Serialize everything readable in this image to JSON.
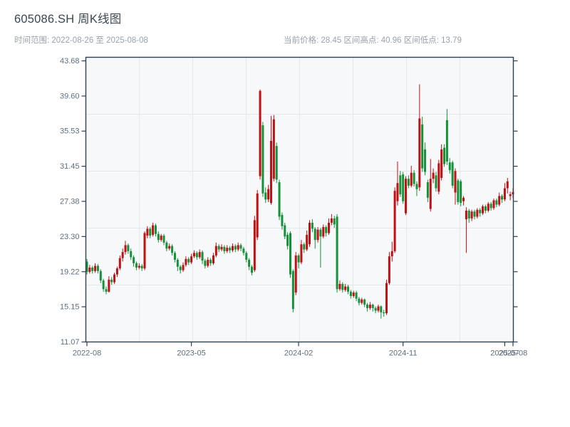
{
  "header": {
    "title": "605086.SH 周K线图",
    "date_range_label": "时间范围: 2022-08-26 至 2025-08-08",
    "stats_text": "当前价格: 28.45  区间高点: 40.96  区间低点: 13.79",
    "stats": [
      {
        "label": "当前价格",
        "value": "28.45"
      },
      {
        "label": "区间高点",
        "value": "40.96"
      },
      {
        "label": "区间低点",
        "value": "13.79"
      }
    ]
  },
  "chart_data": {
    "type": "candlestick",
    "title": "605086.SH 周K线图",
    "frequency": "weekly",
    "start_date": "2022-08-26",
    "end_date": "2025-08-08",
    "current_price": 28.45,
    "range_high": 40.96,
    "range_low": 13.79,
    "y_range": [
      11.07,
      43.68
    ],
    "y_tick_labels": [
      "43.68",
      "39.60",
      "35.53",
      "31.45",
      "27.38",
      "23.30",
      "19.22",
      "15.15",
      "11.07"
    ],
    "x_ticks": [
      {
        "week": 0,
        "label": "2022-08"
      },
      {
        "week": 38,
        "label": "2023-05"
      },
      {
        "week": 77,
        "label": "2024-02"
      },
      {
        "week": 115,
        "label": "2024-11"
      },
      {
        "week": 152,
        "label": "2025-07"
      },
      {
        "week": 155,
        "label": "2025-08"
      }
    ],
    "colors": {
      "up": "#c01014",
      "down": "#15913a",
      "grid": "#e4e8ec",
      "plot_bg": "#f6f8fa",
      "spine": "#2e3f50",
      "tick_label": "#5f6e7e"
    },
    "candles": [
      [
        20.4,
        20.7,
        18.9,
        19.2
      ],
      [
        19.2,
        20.0,
        19.0,
        19.7
      ],
      [
        19.7,
        19.9,
        19.0,
        19.3
      ],
      [
        19.3,
        20.2,
        19.1,
        19.9
      ],
      [
        19.9,
        20.1,
        19.0,
        19.3
      ],
      [
        19.3,
        19.5,
        17.9,
        18.2
      ],
      [
        18.2,
        18.4,
        16.9,
        17.2
      ],
      [
        17.2,
        17.5,
        16.6,
        16.9
      ],
      [
        16.9,
        18.7,
        16.8,
        18.3
      ],
      [
        18.3,
        18.6,
        17.7,
        18.0
      ],
      [
        18.0,
        19.1,
        17.8,
        18.9
      ],
      [
        18.9,
        19.8,
        18.6,
        19.6
      ],
      [
        19.6,
        21.1,
        19.4,
        20.8
      ],
      [
        20.8,
        21.9,
        20.4,
        21.5
      ],
      [
        21.5,
        22.8,
        21.2,
        22.3
      ],
      [
        22.3,
        22.5,
        21.3,
        21.6
      ],
      [
        21.6,
        21.9,
        20.6,
        20.9
      ],
      [
        20.9,
        21.1,
        19.8,
        20.2
      ],
      [
        20.2,
        20.4,
        19.4,
        19.7
      ],
      [
        19.7,
        20.2,
        19.5,
        19.9
      ],
      [
        19.9,
        20.1,
        19.3,
        19.6
      ],
      [
        19.6,
        23.9,
        19.4,
        23.7
      ],
      [
        23.4,
        24.5,
        23.1,
        24.2
      ],
      [
        24.2,
        24.4,
        23.1,
        23.4
      ],
      [
        23.5,
        24.9,
        23.3,
        24.6
      ],
      [
        24.6,
        24.8,
        23.3,
        23.6
      ],
      [
        23.6,
        23.9,
        22.6,
        22.9
      ],
      [
        22.9,
        23.6,
        22.7,
        23.4
      ],
      [
        23.4,
        23.6,
        22.3,
        22.6
      ],
      [
        22.6,
        22.8,
        21.6,
        21.9
      ],
      [
        21.9,
        22.5,
        21.7,
        22.2
      ],
      [
        22.2,
        22.4,
        21.1,
        21.4
      ],
      [
        21.4,
        21.6,
        20.3,
        20.6
      ],
      [
        20.6,
        20.8,
        19.3,
        19.8
      ],
      [
        19.8,
        20.0,
        19.0,
        19.4
      ],
      [
        19.4,
        20.3,
        19.2,
        20.0
      ],
      [
        20.0,
        21.0,
        19.8,
        20.7
      ],
      [
        20.7,
        20.9,
        20.0,
        20.3
      ],
      [
        20.3,
        21.3,
        20.1,
        21.0
      ],
      [
        21.0,
        21.7,
        20.8,
        21.4
      ],
      [
        21.4,
        21.6,
        20.6,
        20.9
      ],
      [
        20.9,
        21.8,
        20.7,
        21.5
      ],
      [
        21.5,
        21.7,
        20.1,
        20.5
      ],
      [
        20.5,
        20.7,
        19.6,
        19.9
      ],
      [
        19.9,
        20.9,
        19.7,
        20.6
      ],
      [
        20.6,
        20.8,
        19.9,
        20.2
      ],
      [
        20.2,
        21.4,
        20.0,
        21.1
      ],
      [
        21.1,
        22.6,
        20.9,
        22.2
      ],
      [
        22.2,
        22.4,
        21.5,
        21.8
      ],
      [
        21.8,
        22.4,
        21.6,
        22.1
      ],
      [
        22.1,
        22.3,
        21.3,
        21.6
      ],
      [
        21.6,
        22.3,
        21.4,
        22.0
      ],
      [
        22.0,
        22.2,
        21.4,
        21.7
      ],
      [
        21.7,
        22.5,
        21.5,
        22.2
      ],
      [
        22.2,
        22.4,
        21.5,
        21.8
      ],
      [
        21.8,
        22.6,
        21.6,
        22.3
      ],
      [
        22.3,
        22.5,
        21.6,
        21.9
      ],
      [
        21.9,
        22.1,
        21.1,
        21.4
      ],
      [
        21.4,
        21.6,
        20.3,
        20.6
      ],
      [
        20.6,
        20.8,
        19.4,
        19.8
      ],
      [
        19.8,
        20.0,
        18.8,
        19.1
      ],
      [
        19.4,
        25.7,
        19.2,
        25.2
      ],
      [
        23.2,
        28.7,
        22.9,
        28.3
      ],
      [
        30.3,
        40.35,
        29.9,
        40.2
      ],
      [
        36.2,
        36.6,
        27.9,
        28.3
      ],
      [
        28.4,
        29.0,
        27.2,
        27.6
      ],
      [
        27.6,
        29.3,
        27.3,
        28.8
      ],
      [
        27.2,
        37.3,
        27.0,
        34.4
      ],
      [
        30.0,
        37.4,
        29.7,
        36.9
      ],
      [
        33.8,
        34.2,
        29.5,
        29.9
      ],
      [
        29.6,
        29.9,
        25.2,
        25.6
      ],
      [
        25.8,
        26.1,
        24.1,
        24.5
      ],
      [
        24.6,
        24.9,
        23.0,
        23.3
      ],
      [
        23.5,
        23.8,
        21.8,
        22.2
      ],
      [
        23.7,
        23.9,
        18.5,
        18.9
      ],
      [
        19.3,
        19.5,
        14.5,
        14.9
      ],
      [
        16.8,
        21.5,
        16.5,
        21.1
      ],
      [
        21.1,
        21.3,
        19.6,
        20.3
      ],
      [
        20.3,
        22.9,
        20.1,
        22.4
      ],
      [
        22.4,
        22.6,
        21.4,
        21.8
      ],
      [
        21.8,
        24.0,
        21.6,
        23.5
      ],
      [
        22.4,
        25.2,
        22.1,
        24.9
      ],
      [
        24.9,
        25.3,
        23.8,
        24.2
      ],
      [
        24.2,
        24.4,
        21.9,
        22.9
      ],
      [
        22.9,
        24.4,
        22.6,
        24.1
      ],
      [
        24.1,
        24.3,
        19.7,
        23.3
      ],
      [
        23.3,
        24.7,
        23.1,
        24.4
      ],
      [
        24.4,
        24.6,
        23.3,
        23.7
      ],
      [
        23.7,
        25.4,
        23.5,
        24.9
      ],
      [
        24.9,
        25.9,
        24.6,
        25.4
      ],
      [
        25.4,
        25.7,
        24.3,
        24.7
      ],
      [
        25.6,
        25.9,
        16.8,
        17.2
      ],
      [
        17.2,
        18.2,
        17.0,
        17.8
      ],
      [
        17.8,
        18.0,
        16.8,
        17.1
      ],
      [
        17.1,
        17.8,
        16.9,
        17.5
      ],
      [
        17.5,
        17.7,
        16.6,
        16.9
      ],
      [
        16.9,
        17.1,
        16.1,
        16.4
      ],
      [
        16.4,
        17.0,
        16.2,
        16.8
      ],
      [
        16.8,
        17.0,
        15.8,
        16.1
      ],
      [
        16.1,
        16.3,
        15.3,
        15.6
      ],
      [
        15.6,
        16.2,
        15.4,
        16.0
      ],
      [
        16.0,
        16.1,
        15.1,
        15.4
      ],
      [
        15.4,
        15.6,
        14.6,
        15.0
      ],
      [
        15.0,
        15.7,
        14.8,
        15.4
      ],
      [
        15.4,
        15.5,
        14.6,
        15.0
      ],
      [
        15.0,
        15.2,
        14.4,
        14.7
      ],
      [
        14.7,
        15.4,
        14.5,
        15.2
      ],
      [
        15.2,
        15.3,
        13.79,
        14.5
      ],
      [
        14.5,
        14.8,
        14.0,
        14.4
      ],
      [
        14.4,
        18.3,
        14.2,
        17.9
      ],
      [
        17.9,
        21.5,
        17.7,
        21.0
      ],
      [
        21.0,
        22.7,
        20.4,
        21.6
      ],
      [
        21.6,
        29.0,
        21.4,
        28.6
      ],
      [
        27.4,
        32.0,
        26.9,
        29.5
      ],
      [
        30.4,
        30.9,
        27.9,
        28.2
      ],
      [
        30.5,
        30.8,
        27.1,
        27.4
      ],
      [
        26.0,
        30.3,
        25.8,
        30.0
      ],
      [
        30.0,
        30.4,
        28.9,
        29.2
      ],
      [
        29.2,
        31.5,
        29.0,
        30.7
      ],
      [
        30.7,
        31.0,
        29.1,
        29.4
      ],
      [
        29.4,
        29.7,
        28.0,
        28.8
      ],
      [
        29.0,
        40.96,
        28.6,
        37.0
      ],
      [
        36.3,
        37.2,
        30.8,
        31.2
      ],
      [
        33.4,
        34.2,
        30.4,
        30.8
      ],
      [
        29.6,
        29.9,
        27.3,
        27.8
      ],
      [
        26.5,
        32.3,
        26.2,
        30.0
      ],
      [
        30.0,
        31.2,
        29.5,
        30.7
      ],
      [
        30.4,
        30.8,
        28.5,
        28.9
      ],
      [
        28.5,
        32.2,
        28.2,
        31.8
      ],
      [
        30.1,
        34.0,
        29.8,
        33.4
      ],
      [
        33.6,
        34.0,
        31.4,
        31.7
      ],
      [
        36.8,
        38.1,
        31.6,
        32.0
      ],
      [
        31.9,
        32.4,
        30.6,
        31.0
      ],
      [
        31.9,
        32.1,
        28.9,
        29.2
      ],
      [
        28.4,
        31.2,
        27.0,
        30.9
      ],
      [
        29.8,
        30.0,
        27.0,
        27.3
      ],
      [
        29.7,
        29.9,
        26.8,
        27.2
      ],
      [
        27.4,
        28.0,
        26.9,
        27.8
      ],
      [
        25.3,
        26.7,
        21.4,
        26.3
      ],
      [
        26.3,
        26.5,
        24.9,
        25.4
      ],
      [
        25.4,
        26.4,
        25.1,
        26.2
      ],
      [
        26.2,
        26.4,
        25.3,
        25.6
      ],
      [
        25.6,
        26.6,
        25.4,
        26.4
      ],
      [
        26.4,
        26.6,
        25.6,
        26.0
      ],
      [
        26.0,
        27.0,
        25.8,
        26.8
      ],
      [
        26.8,
        27.0,
        26.0,
        26.3
      ],
      [
        26.3,
        27.3,
        26.1,
        27.1
      ],
      [
        27.1,
        27.3,
        26.3,
        26.6
      ],
      [
        26.6,
        27.7,
        26.4,
        27.5
      ],
      [
        27.5,
        27.7,
        26.7,
        27.0
      ],
      [
        27.0,
        28.4,
        26.8,
        28.0
      ],
      [
        28.0,
        28.2,
        27.2,
        27.6
      ],
      [
        27.6,
        29.5,
        27.4,
        28.9
      ],
      [
        28.9,
        30.1,
        28.3,
        29.7
      ],
      [
        28.0,
        28.5,
        27.5,
        28.2
      ],
      [
        28.2,
        28.9,
        27.8,
        28.45
      ]
    ]
  }
}
